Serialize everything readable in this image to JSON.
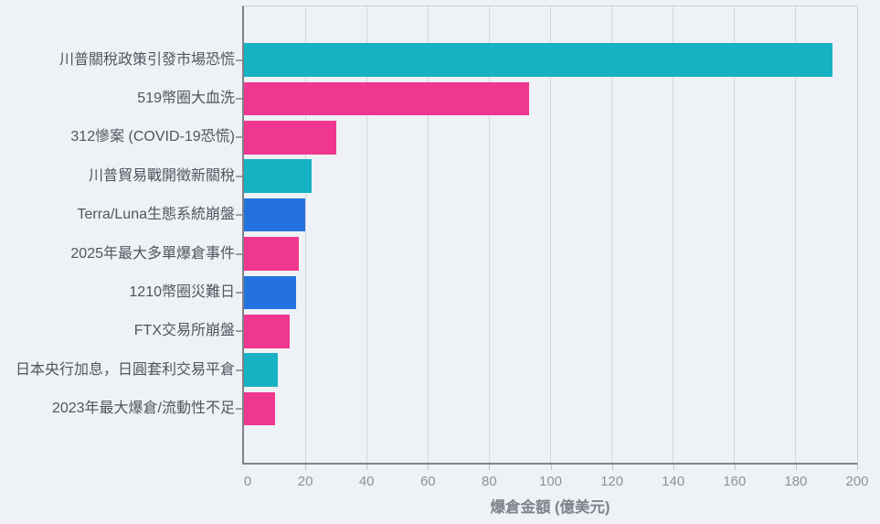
{
  "page": {
    "background": "#eef1f5"
  },
  "chart_data": {
    "type": "bar",
    "orientation": "horizontal",
    "title": "",
    "xlabel": "爆倉金額 (億美元)",
    "ylabel": "",
    "xlim": [
      0,
      200
    ],
    "xticks": [
      0,
      20,
      40,
      60,
      80,
      100,
      120,
      140,
      160,
      180,
      200
    ],
    "grid": true,
    "legend": "none",
    "categories": [
      "川普關稅政策引發市場恐慌",
      "519幣圈大血洗",
      "312慘案 (COVID-19恐慌)",
      "川普貿易戰開徵新關稅",
      "Terra/Luna生態系統崩盤",
      "2025年最大多單爆倉事件",
      "1210幣圈災難日",
      "FTX交易所崩盤",
      "日本央行加息，日圓套利交易平倉",
      "2023年最大爆倉/流動性不足"
    ],
    "values": [
      192,
      93,
      30,
      22,
      20,
      18,
      17,
      15,
      11,
      10
    ],
    "bar_color_keys": [
      "teal",
      "pink",
      "pink",
      "teal",
      "blue",
      "pink",
      "blue",
      "pink",
      "teal",
      "pink"
    ],
    "palette": {
      "teal": "#17b1c4",
      "pink": "#f0378f",
      "blue": "#2472dd"
    }
  }
}
